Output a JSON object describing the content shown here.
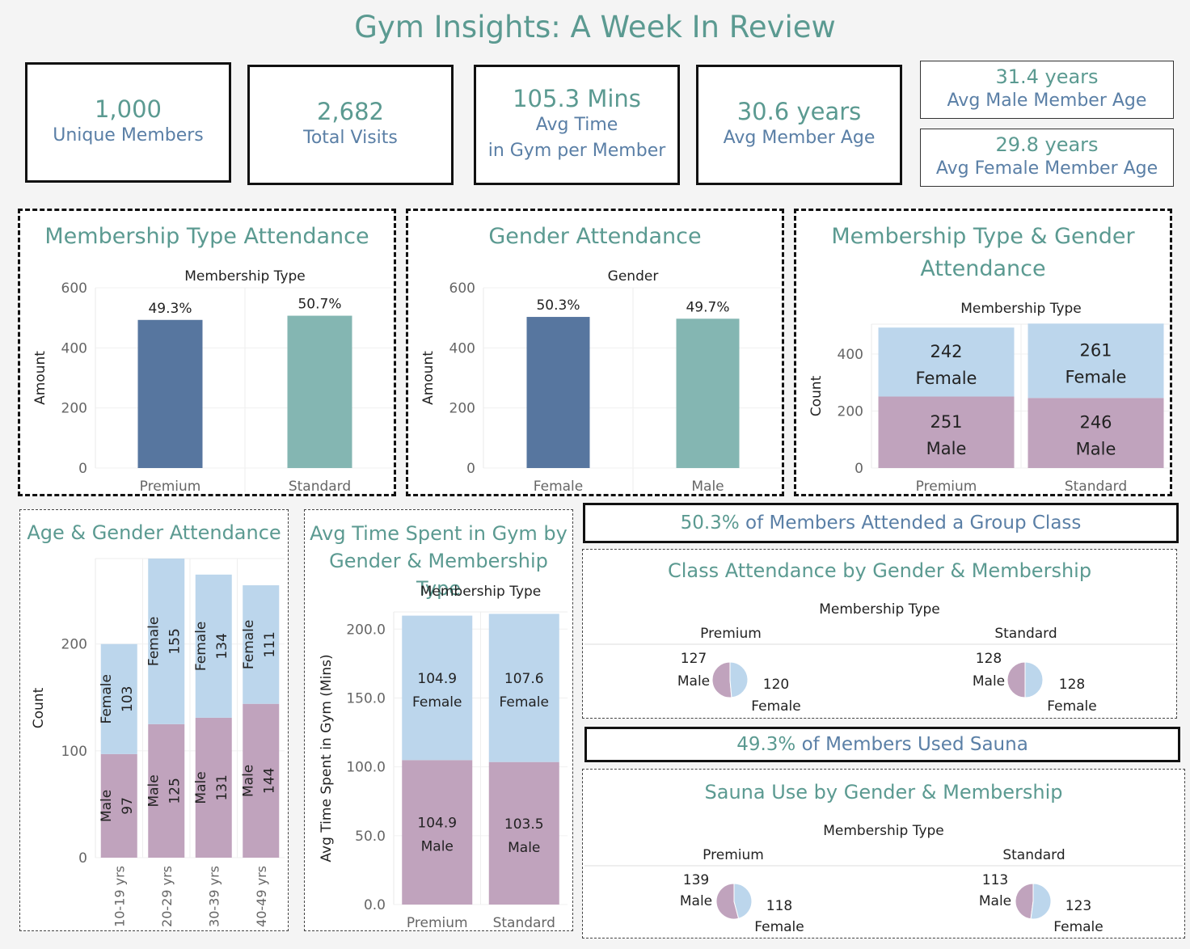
{
  "title": "Gym Insights: A Week In Review",
  "kpis": [
    {
      "value": "1,000",
      "label": "Unique Members"
    },
    {
      "value": "2,682",
      "label": "Total Visits"
    },
    {
      "value": "105.3 Mins",
      "label": "Avg Time",
      "label2": "in Gym per Member"
    },
    {
      "value": "30.6 years",
      "label": "Avg Member Age"
    }
  ],
  "age_kpis": [
    {
      "value": "31.4 years",
      "label": "Avg Male Member Age"
    },
    {
      "value": "29.8 years",
      "label": "Avg Female Member Age"
    }
  ],
  "colors": {
    "title": "#5b9a91",
    "text_blue": "#5a7fa6",
    "premium": "#57769f",
    "standard": "#84b6b2",
    "female": "#bcd6ec",
    "male": "#c0a3bd"
  },
  "banners": {
    "group_class": {
      "highlight": "50.3%",
      "text": " of Members Attended a Group Class"
    },
    "sauna": {
      "highlight": "49.3%",
      "text": " of Members Used Sauna"
    }
  },
  "chart_data": [
    {
      "id": "membership_type_attendance",
      "type": "bar",
      "title": "Membership Type Attendance",
      "header": "Membership Type",
      "ylabel": "Amount",
      "categories": [
        "Premium",
        "Standard"
      ],
      "values": [
        493,
        507
      ],
      "labels": [
        "49.3%",
        "50.7%"
      ],
      "ylim": [
        0,
        600
      ],
      "yticks": [
        0,
        200,
        400,
        600
      ]
    },
    {
      "id": "gender_attendance",
      "type": "bar",
      "title": "Gender Attendance",
      "header": "Gender",
      "ylabel": "Amount",
      "categories": [
        "Female",
        "Male"
      ],
      "values": [
        503,
        497
      ],
      "labels": [
        "50.3%",
        "49.7%"
      ],
      "ylim": [
        0,
        600
      ],
      "yticks": [
        0,
        200,
        400,
        600
      ]
    },
    {
      "id": "membership_gender_attendance",
      "type": "bar",
      "title": "Membership Type & Gender Attendance",
      "title_lines": [
        "Membership Type & Gender",
        "Attendance"
      ],
      "header": "Membership Type",
      "ylabel": "Count",
      "categories": [
        "Premium",
        "Standard"
      ],
      "ylim": [
        0,
        505
      ],
      "yticks": [
        0,
        200,
        400
      ],
      "series": [
        {
          "name": "Male",
          "values": [
            251,
            246
          ]
        },
        {
          "name": "Female",
          "values": [
            242,
            261
          ]
        }
      ]
    },
    {
      "id": "age_gender_attendance",
      "type": "bar",
      "title": "Age & Gender Attendance",
      "ylabel": "Count",
      "categories": [
        "10-19 yrs",
        "20-29 yrs",
        "30-39 yrs",
        "40-49 yrs"
      ],
      "ylim": [
        0,
        280
      ],
      "yticks": [
        0,
        100,
        200
      ],
      "series": [
        {
          "name": "Male",
          "values": [
            97,
            125,
            131,
            144
          ]
        },
        {
          "name": "Female",
          "values": [
            103,
            155,
            134,
            111
          ]
        }
      ]
    },
    {
      "id": "avg_time_gender_membership",
      "type": "bar",
      "title": "Avg Time Spent in Gym by Gender & Membership Type",
      "title_lines": [
        "Avg Time Spent in Gym by",
        "Gender & Membership Type"
      ],
      "header": "Membership Type",
      "ylabel": "Avg Time Spent in Gym (Mins)",
      "categories": [
        "Premium",
        "Standard"
      ],
      "ylim": [
        0,
        212.5
      ],
      "yticks": [
        "0.0",
        "50.0",
        "100.0",
        "150.0",
        "200.0"
      ],
      "series": [
        {
          "name": "Male",
          "values": [
            104.9,
            103.5
          ]
        },
        {
          "name": "Female",
          "values": [
            104.9,
            107.6
          ]
        }
      ]
    },
    {
      "id": "class_attendance",
      "type": "pie",
      "title": "Class Attendance by Gender & Membership",
      "header": "Membership Type",
      "groups": [
        {
          "name": "Premium",
          "slices": [
            {
              "name": "Male",
              "value": 127
            },
            {
              "name": "Female",
              "value": 120
            }
          ]
        },
        {
          "name": "Standard",
          "slices": [
            {
              "name": "Male",
              "value": 128
            },
            {
              "name": "Female",
              "value": 128
            }
          ]
        }
      ]
    },
    {
      "id": "sauna_use",
      "type": "pie",
      "title": "Sauna Use by Gender & Membership",
      "header": "Membership Type",
      "groups": [
        {
          "name": "Premium",
          "slices": [
            {
              "name": "Male",
              "value": 139
            },
            {
              "name": "Female",
              "value": 118
            }
          ]
        },
        {
          "name": "Standard",
          "slices": [
            {
              "name": "Male",
              "value": 113
            },
            {
              "name": "Female",
              "value": 123
            }
          ]
        }
      ]
    }
  ]
}
